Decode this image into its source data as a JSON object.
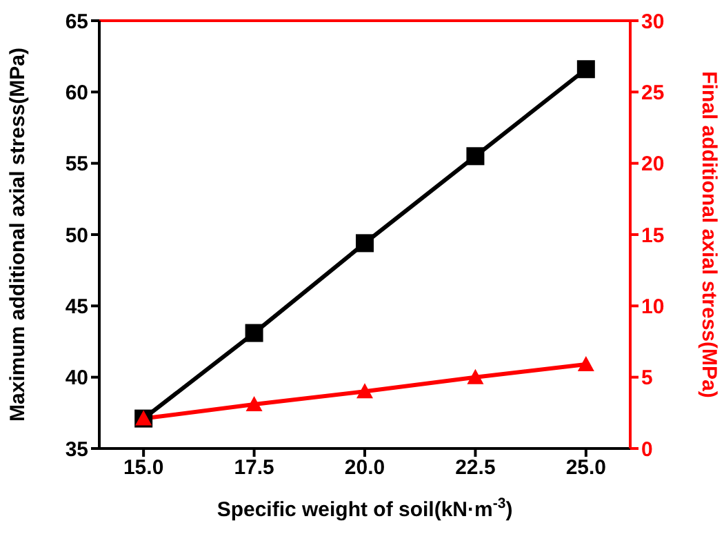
{
  "chart_data": {
    "type": "line",
    "xlabel": "Specific weight of soil(kN·m$^{-3}$)",
    "ylabel": "Maximum additional axial stress(MPa)",
    "y2label": "Final additional axial stress(MPa)",
    "x": [
      15,
      17.5,
      20,
      22.5,
      25
    ],
    "xlim": [
      14,
      26
    ],
    "xticks": [
      {
        "value": 15,
        "label": "15.0"
      },
      {
        "value": 17.5,
        "label": "17.5"
      },
      {
        "value": 20,
        "label": "20.0"
      },
      {
        "value": 22.5,
        "label": "22.5"
      },
      {
        "value": 25,
        "label": "25.0"
      }
    ],
    "ylim": [
      35,
      65
    ],
    "yticks": [
      35,
      40,
      45,
      50,
      55,
      60,
      65
    ],
    "y2lim": [
      0,
      30
    ],
    "y2ticks": [
      0,
      5,
      10,
      15,
      20,
      25,
      30
    ],
    "series": [
      {
        "color": "#000000",
        "marker": "square",
        "values": [
          37.1,
          43.1,
          49.4,
          55.5,
          61.6
        ]
      },
      {
        "color": "#ff0000",
        "marker": "triangle",
        "axis": "y2",
        "values": [
          2.1,
          3.1,
          4.0,
          5.0,
          5.9
        ]
      }
    ],
    "grid": false,
    "legend": false,
    "line_style": "solid"
  }
}
